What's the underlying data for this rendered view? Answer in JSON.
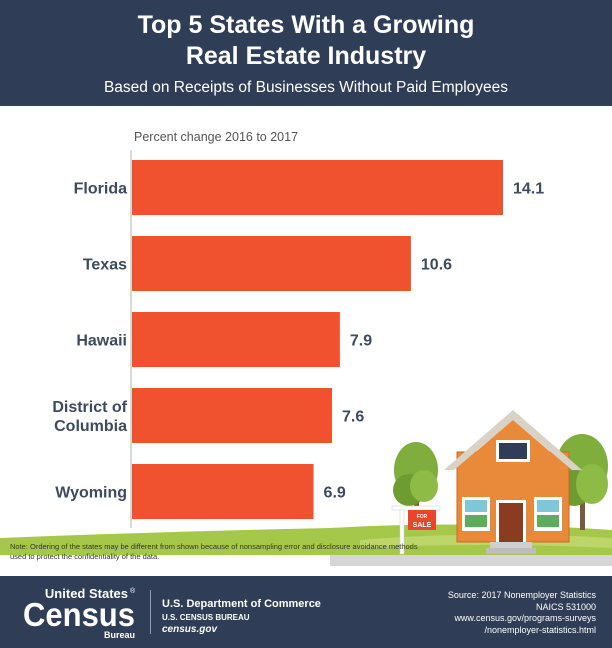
{
  "header": {
    "title_line1": "Top 5 States With a Growing",
    "title_line2": "Real Estate Industry",
    "subtitle": "Based on Receipts of Businesses Without Paid Employees"
  },
  "chart_data": {
    "type": "bar",
    "orientation": "horizontal",
    "title": "Top 5 States With a Growing Real Estate Industry",
    "subtitle": "Based on Receipts of Businesses Without Paid Employees",
    "value_label": "Percent change 2016 to 2017",
    "categories": [
      "Florida",
      "Texas",
      "Hawaii",
      "District of Columbia",
      "Wyoming"
    ],
    "category_lines": [
      [
        "Florida"
      ],
      [
        "Texas"
      ],
      [
        "Hawaii"
      ],
      [
        "District of",
        "Columbia"
      ],
      [
        "Wyoming"
      ]
    ],
    "values": [
      14.1,
      10.6,
      7.9,
      7.6,
      6.9
    ],
    "data_labels": [
      "14.1",
      "10.6",
      "7.9",
      "7.6",
      "6.9"
    ],
    "xlim": [
      0,
      14.1
    ],
    "grid": false,
    "bar_color": "#f0512e"
  },
  "illustration": {
    "sign_text_top": "FOR",
    "sign_text_bottom": "SALE"
  },
  "note": "Note: Ordering of the states may be different from shown because of nonsampling error and disclosure avoidance methods used to protect the confidentiality of the data.",
  "footer": {
    "logo_top": "United States",
    "logo_reg": "®",
    "logo_main": "Census",
    "logo_bottom": "Bureau",
    "dept": "U.S. Department of Commerce",
    "bureau": "U.S. CENSUS BUREAU",
    "gov": "census.gov",
    "source_lines": [
      "Source: 2017 Nonemployer Statistics",
      "NAICS 531000",
      "www.census.gov/programs-surveys",
      "/nonemployer-statistics.html"
    ]
  },
  "colors": {
    "navy": "#2f3e56",
    "bar": "#f0512e",
    "house_orange": "#e98a3b",
    "grass": "#a6c84a",
    "tree_green": "#7fae3c"
  }
}
